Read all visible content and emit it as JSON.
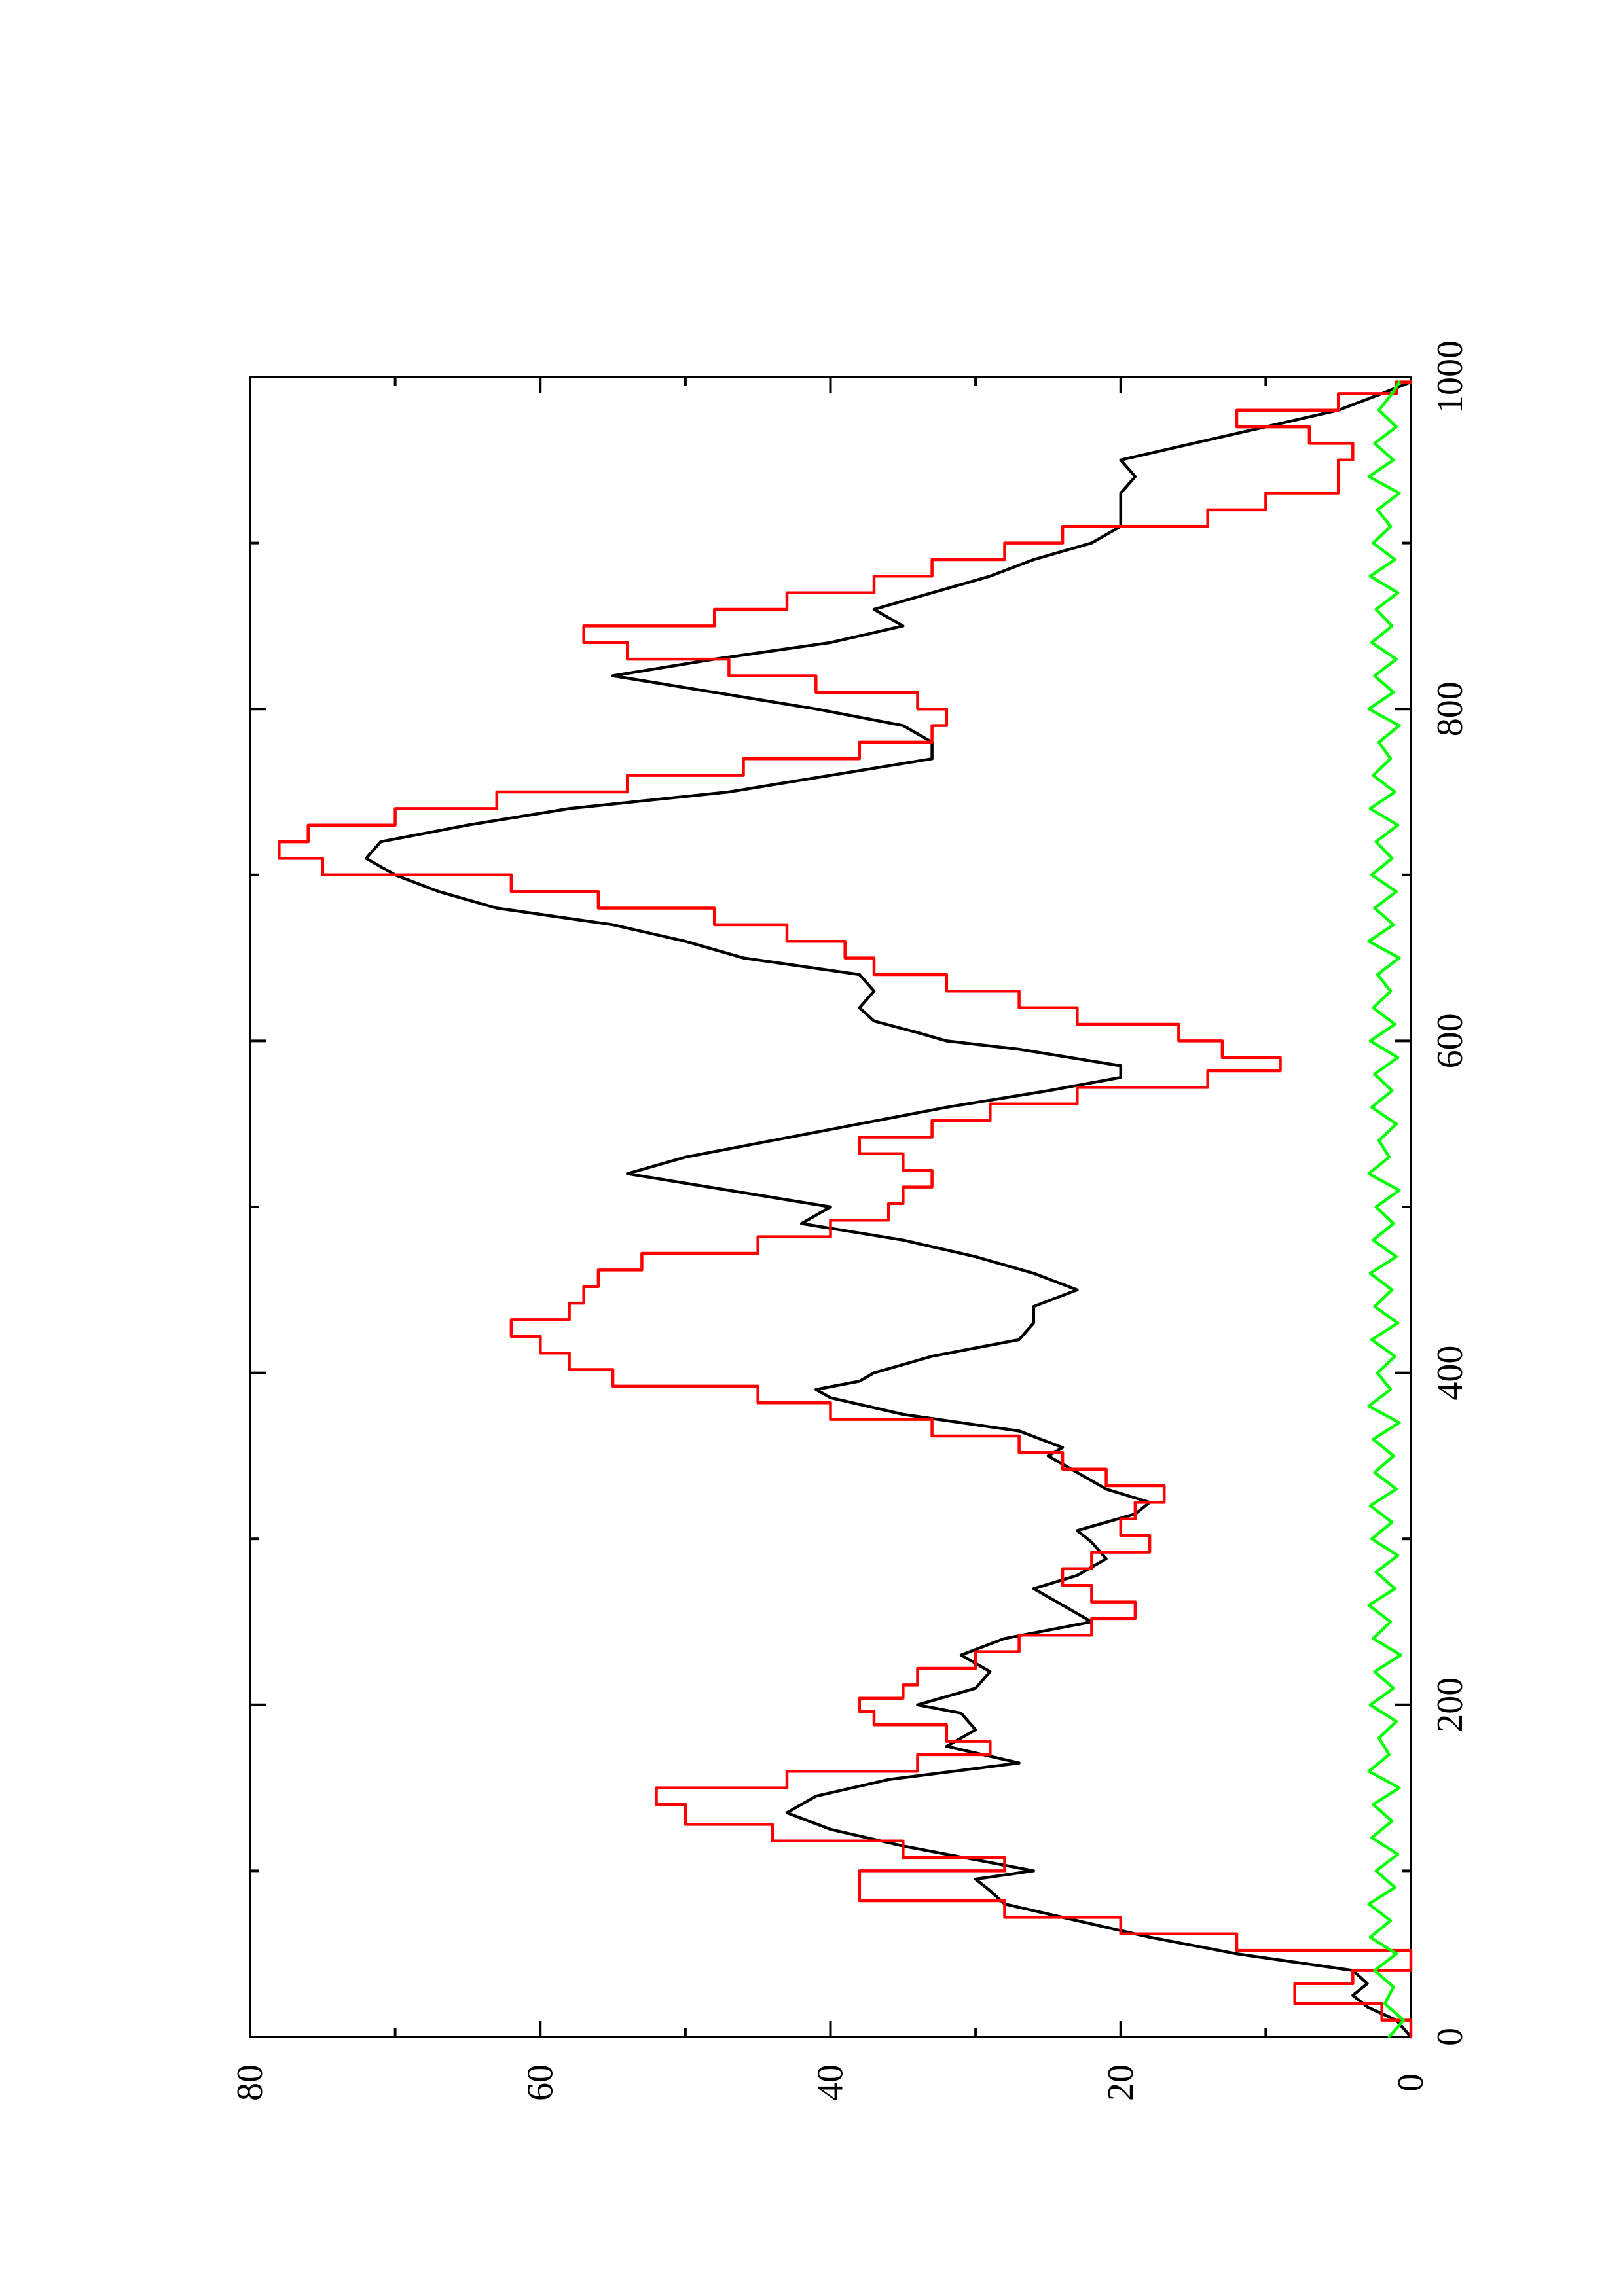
{
  "chart_data": {
    "type": "line",
    "orientation": "rotated-90-ccw",
    "title": "",
    "xlabel": "",
    "ylabel": "",
    "xlim": [
      0,
      1000
    ],
    "ylim": [
      0,
      80
    ],
    "x_ticks": [
      0,
      200,
      400,
      600,
      800,
      1000
    ],
    "x_minor_ticks": [
      100,
      300,
      500,
      700,
      900
    ],
    "y_ticks": [
      0,
      20,
      40,
      60,
      80
    ],
    "y_minor_ticks": [
      10,
      30,
      50,
      70
    ],
    "x_tick_labels": [
      "0",
      "200",
      "400",
      "600",
      "800",
      "1000"
    ],
    "y_tick_labels": [
      "0",
      "20",
      "40",
      "60",
      "80"
    ],
    "grid": false,
    "legend": "none",
    "series": [
      {
        "color": "#000000",
        "style": "smooth",
        "points": [
          [
            0,
            0
          ],
          [
            10,
            1
          ],
          [
            18,
            3
          ],
          [
            25,
            4
          ],
          [
            32,
            3
          ],
          [
            40,
            4
          ],
          [
            50,
            12
          ],
          [
            60,
            18
          ],
          [
            70,
            23
          ],
          [
            80,
            28
          ],
          [
            88,
            29
          ],
          [
            95,
            30
          ],
          [
            100,
            26
          ],
          [
            105,
            29
          ],
          [
            115,
            35
          ],
          [
            125,
            40
          ],
          [
            135,
            43
          ],
          [
            145,
            41
          ],
          [
            155,
            36
          ],
          [
            165,
            27
          ],
          [
            175,
            32
          ],
          [
            185,
            30
          ],
          [
            195,
            31
          ],
          [
            200,
            34
          ],
          [
            210,
            30
          ],
          [
            220,
            29
          ],
          [
            230,
            31
          ],
          [
            240,
            28
          ],
          [
            250,
            22
          ],
          [
            260,
            24
          ],
          [
            270,
            26
          ],
          [
            278,
            23
          ],
          [
            288,
            21
          ],
          [
            298,
            22
          ],
          [
            305,
            23
          ],
          [
            315,
            19
          ],
          [
            322,
            18
          ],
          [
            330,
            21
          ],
          [
            340,
            23
          ],
          [
            350,
            25
          ],
          [
            355,
            24
          ],
          [
            365,
            27
          ],
          [
            375,
            35
          ],
          [
            385,
            40
          ],
          [
            390,
            41
          ],
          [
            395,
            38
          ],
          [
            400,
            37
          ],
          [
            410,
            33
          ],
          [
            420,
            27
          ],
          [
            430,
            26
          ],
          [
            440,
            26
          ],
          [
            450,
            23
          ],
          [
            460,
            26
          ],
          [
            470,
            30
          ],
          [
            480,
            35
          ],
          [
            490,
            42
          ],
          [
            500,
            40
          ],
          [
            510,
            47
          ],
          [
            520,
            54
          ],
          [
            530,
            50
          ],
          [
            540,
            44
          ],
          [
            550,
            38
          ],
          [
            560,
            32
          ],
          [
            570,
            25
          ],
          [
            578,
            20
          ],
          [
            585,
            20
          ],
          [
            595,
            27
          ],
          [
            600,
            32
          ],
          [
            605,
            34
          ],
          [
            612,
            37
          ],
          [
            620,
            38
          ],
          [
            630,
            37
          ],
          [
            640,
            38
          ],
          [
            650,
            46
          ],
          [
            660,
            50
          ],
          [
            670,
            55
          ],
          [
            680,
            63
          ],
          [
            690,
            67
          ],
          [
            700,
            70
          ],
          [
            710,
            72
          ],
          [
            720,
            71
          ],
          [
            730,
            65
          ],
          [
            740,
            58
          ],
          [
            750,
            47
          ],
          [
            760,
            40
          ],
          [
            770,
            33
          ],
          [
            780,
            33
          ],
          [
            790,
            35
          ],
          [
            800,
            41
          ],
          [
            810,
            48
          ],
          [
            820,
            55
          ],
          [
            830,
            48
          ],
          [
            840,
            40
          ],
          [
            850,
            35
          ],
          [
            860,
            37
          ],
          [
            870,
            33
          ],
          [
            880,
            29
          ],
          [
            890,
            26
          ],
          [
            900,
            22
          ],
          [
            910,
            20
          ],
          [
            920,
            20
          ],
          [
            930,
            20
          ],
          [
            940,
            19
          ],
          [
            950,
            20
          ],
          [
            960,
            15
          ],
          [
            970,
            10
          ],
          [
            980,
            5
          ],
          [
            990,
            2
          ],
          [
            997,
            0
          ]
        ]
      },
      {
        "color": "#ff0000",
        "style": "step",
        "points": [
          [
            0,
            0
          ],
          [
            10,
            2
          ],
          [
            20,
            8
          ],
          [
            32,
            4
          ],
          [
            40,
            0
          ],
          [
            52,
            12
          ],
          [
            62,
            20
          ],
          [
            72,
            28
          ],
          [
            82,
            38
          ],
          [
            92,
            38
          ],
          [
            100,
            28
          ],
          [
            108,
            35
          ],
          [
            118,
            44
          ],
          [
            128,
            50
          ],
          [
            140,
            52
          ],
          [
            150,
            43
          ],
          [
            160,
            34
          ],
          [
            170,
            29
          ],
          [
            178,
            32
          ],
          [
            188,
            37
          ],
          [
            196,
            38
          ],
          [
            204,
            35
          ],
          [
            212,
            34
          ],
          [
            222,
            30
          ],
          [
            232,
            27
          ],
          [
            242,
            22
          ],
          [
            252,
            19
          ],
          [
            262,
            22
          ],
          [
            272,
            24
          ],
          [
            282,
            22
          ],
          [
            292,
            18
          ],
          [
            302,
            20
          ],
          [
            312,
            19
          ],
          [
            322,
            17
          ],
          [
            332,
            21
          ],
          [
            342,
            24
          ],
          [
            352,
            27
          ],
          [
            362,
            33
          ],
          [
            372,
            40
          ],
          [
            382,
            45
          ],
          [
            392,
            55
          ],
          [
            402,
            58
          ],
          [
            412,
            60
          ],
          [
            422,
            62
          ],
          [
            432,
            58
          ],
          [
            442,
            57
          ],
          [
            452,
            56
          ],
          [
            462,
            53
          ],
          [
            472,
            45
          ],
          [
            482,
            40
          ],
          [
            492,
            36
          ],
          [
            502,
            35
          ],
          [
            512,
            33
          ],
          [
            522,
            35
          ],
          [
            532,
            38
          ],
          [
            542,
            33
          ],
          [
            552,
            29
          ],
          [
            562,
            23
          ],
          [
            572,
            14
          ],
          [
            582,
            9
          ],
          [
            590,
            13
          ],
          [
            600,
            16
          ],
          [
            610,
            23
          ],
          [
            620,
            27
          ],
          [
            630,
            32
          ],
          [
            640,
            37
          ],
          [
            650,
            39
          ],
          [
            660,
            43
          ],
          [
            670,
            48
          ],
          [
            680,
            56
          ],
          [
            690,
            62
          ],
          [
            700,
            75
          ],
          [
            710,
            78
          ],
          [
            720,
            76
          ],
          [
            730,
            70
          ],
          [
            740,
            63
          ],
          [
            750,
            54
          ],
          [
            760,
            46
          ],
          [
            770,
            38
          ],
          [
            780,
            33
          ],
          [
            790,
            32
          ],
          [
            800,
            34
          ],
          [
            810,
            41
          ],
          [
            820,
            47
          ],
          [
            830,
            54
          ],
          [
            840,
            57
          ],
          [
            850,
            48
          ],
          [
            860,
            43
          ],
          [
            870,
            37
          ],
          [
            880,
            33
          ],
          [
            890,
            28
          ],
          [
            900,
            24
          ],
          [
            910,
            14
          ],
          [
            920,
            10
          ],
          [
            930,
            5
          ],
          [
            940,
            5
          ],
          [
            950,
            4
          ],
          [
            960,
            7
          ],
          [
            970,
            12
          ],
          [
            980,
            5
          ],
          [
            990,
            1
          ],
          [
            997,
            0
          ]
        ]
      },
      {
        "color": "#00ff00",
        "style": "noisy",
        "points": [
          [
            0,
            1.5
          ],
          [
            10,
            0.5
          ],
          [
            20,
            1.8
          ],
          [
            30,
            1.2
          ],
          [
            40,
            2.5
          ],
          [
            50,
            1.0
          ],
          [
            60,
            2.8
          ],
          [
            70,
            1.4
          ],
          [
            80,
            2.9
          ],
          [
            90,
            1.1
          ],
          [
            100,
            2.4
          ],
          [
            110,
            0.9
          ],
          [
            120,
            2.7
          ],
          [
            130,
            1.3
          ],
          [
            140,
            2.6
          ],
          [
            150,
            0.8
          ],
          [
            160,
            2.9
          ],
          [
            170,
            1.5
          ],
          [
            180,
            2.2
          ],
          [
            190,
            1.0
          ],
          [
            200,
            2.8
          ],
          [
            210,
            1.2
          ],
          [
            220,
            2.5
          ],
          [
            230,
            0.7
          ],
          [
            240,
            2.6
          ],
          [
            250,
            1.4
          ],
          [
            260,
            2.9
          ],
          [
            270,
            1.1
          ],
          [
            280,
            2.4
          ],
          [
            290,
            0.9
          ],
          [
            300,
            2.7
          ],
          [
            310,
            1.3
          ],
          [
            320,
            2.8
          ],
          [
            330,
            1.0
          ],
          [
            340,
            2.5
          ],
          [
            350,
            1.2
          ],
          [
            360,
            2.6
          ],
          [
            370,
            0.8
          ],
          [
            380,
            2.9
          ],
          [
            390,
            1.4
          ],
          [
            400,
            2.3
          ],
          [
            410,
            1.1
          ],
          [
            420,
            2.7
          ],
          [
            430,
            0.9
          ],
          [
            440,
            2.5
          ],
          [
            450,
            1.3
          ],
          [
            460,
            2.8
          ],
          [
            470,
            1.0
          ],
          [
            480,
            2.6
          ],
          [
            490,
            1.2
          ],
          [
            500,
            2.4
          ],
          [
            510,
            0.8
          ],
          [
            520,
            2.9
          ],
          [
            530,
            1.5
          ],
          [
            540,
            2.2
          ],
          [
            550,
            1.0
          ],
          [
            560,
            2.7
          ],
          [
            570,
            1.3
          ],
          [
            580,
            2.5
          ],
          [
            590,
            0.9
          ],
          [
            600,
            2.8
          ],
          [
            610,
            1.1
          ],
          [
            620,
            2.6
          ],
          [
            630,
            1.4
          ],
          [
            640,
            2.3
          ],
          [
            650,
            0.8
          ],
          [
            660,
            2.9
          ],
          [
            670,
            1.2
          ],
          [
            680,
            2.5
          ],
          [
            690,
            1.0
          ],
          [
            700,
            2.7
          ],
          [
            710,
            1.3
          ],
          [
            720,
            2.4
          ],
          [
            730,
            0.9
          ],
          [
            740,
            2.8
          ],
          [
            750,
            1.1
          ],
          [
            760,
            2.6
          ],
          [
            770,
            1.4
          ],
          [
            780,
            2.2
          ],
          [
            790,
            0.8
          ],
          [
            800,
            2.9
          ],
          [
            810,
            1.2
          ],
          [
            820,
            2.5
          ],
          [
            830,
            1.0
          ],
          [
            840,
            2.7
          ],
          [
            850,
            1.3
          ],
          [
            860,
            2.4
          ],
          [
            870,
            0.9
          ],
          [
            880,
            2.8
          ],
          [
            890,
            1.1
          ],
          [
            900,
            2.6
          ],
          [
            910,
            1.4
          ],
          [
            920,
            2.3
          ],
          [
            930,
            0.8
          ],
          [
            940,
            2.9
          ],
          [
            950,
            1.2
          ],
          [
            960,
            2.5
          ],
          [
            970,
            1.0
          ],
          [
            980,
            2.2
          ],
          [
            990,
            1.3
          ],
          [
            997,
            0.8
          ]
        ]
      }
    ]
  }
}
